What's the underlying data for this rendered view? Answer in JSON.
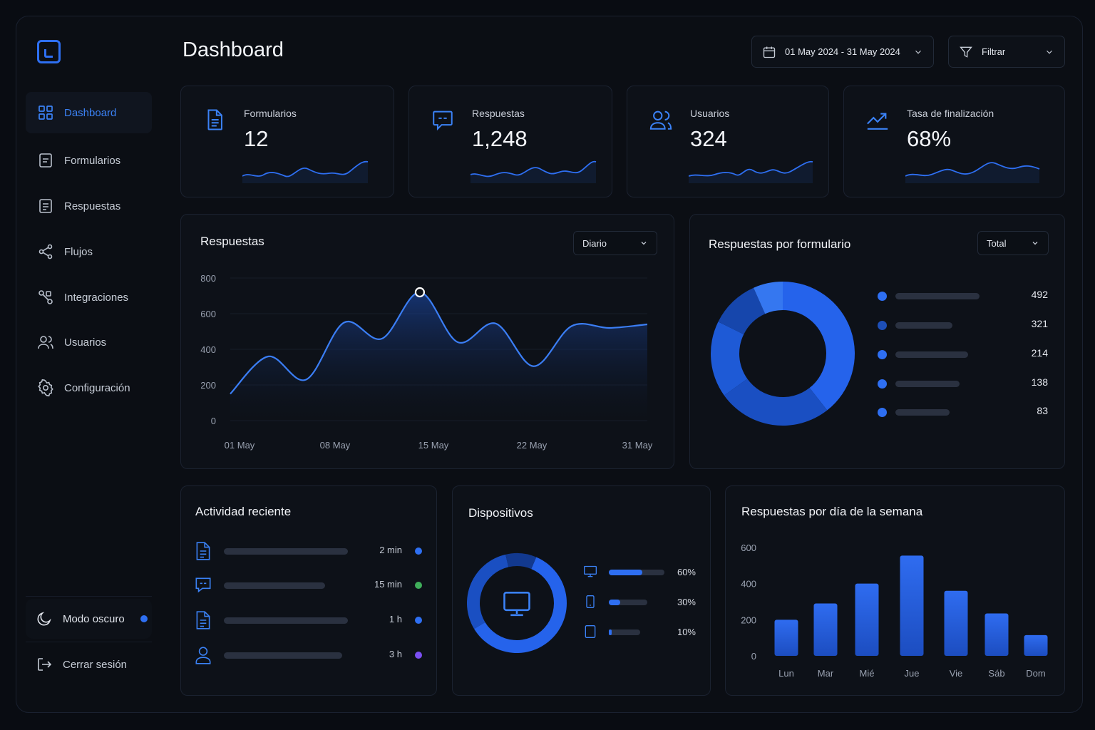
{
  "header": {
    "title": "Dashboard",
    "date_range": "01 May 2024 - 31 May 2024",
    "filter_label": "Filtrar"
  },
  "sidebar": {
    "items": [
      {
        "label": "Dashboard",
        "icon": "grid-icon",
        "active": true
      },
      {
        "label": "Formularios",
        "icon": "form-icon"
      },
      {
        "label": "Respuestas",
        "icon": "responses-icon"
      },
      {
        "label": "Flujos",
        "icon": "flow-icon"
      },
      {
        "label": "Integraciones",
        "icon": "integrations-icon"
      },
      {
        "label": "Usuarios",
        "icon": "users-icon"
      },
      {
        "label": "Configuración",
        "icon": "settings-icon"
      }
    ],
    "theme_toggle": "Modo oscuro",
    "logout": "Cerrar sesión"
  },
  "stats": [
    {
      "label": "Formularios",
      "value": "12",
      "icon": "document-icon"
    },
    {
      "label": "Respuestas",
      "value": "1,248",
      "icon": "chat-icon"
    },
    {
      "label": "Usuarios",
      "value": "324",
      "icon": "users-icon"
    },
    {
      "label": "Tasa de finalización",
      "value": "68%",
      "icon": "trend-up-icon"
    }
  ],
  "responses_chart": {
    "title": "Respuestas",
    "period": "Diario"
  },
  "responses_by_form": {
    "title": "Respuestas por formulario",
    "period": "Total"
  },
  "activity": {
    "title": "Actividad reciente",
    "items": [
      {
        "icon": "document-icon",
        "time": "2 min",
        "status_color": "#2e6ff2"
      },
      {
        "icon": "chat-icon",
        "time": "15 min",
        "status_color": "#3fae5a"
      },
      {
        "icon": "document-icon",
        "time": "1 h",
        "status_color": "#2e6ff2"
      },
      {
        "icon": "user-icon",
        "time": "3 h",
        "status_color": "#7b4ff2"
      }
    ]
  },
  "devices": {
    "title": "Dispositivos",
    "center_icon": "monitor-icon",
    "items": [
      {
        "icon": "desktop-icon",
        "label": "60%",
        "fraction": 0.6
      },
      {
        "icon": "mobile-icon",
        "label": "30%",
        "fraction": 0.3
      },
      {
        "icon": "tablet-icon",
        "label": "10%",
        "fraction": 0.1
      }
    ]
  },
  "weekday_chart": {
    "title": "Respuestas por día de la semana"
  },
  "colors": {
    "accent": "#2e6ff2",
    "background": "#0b0e14",
    "card": "#0d1118"
  },
  "chart_data": [
    {
      "type": "area",
      "x": [
        "01 May",
        "04 May",
        "08 May",
        "11 May",
        "13 May",
        "15 May",
        "17 May",
        "19 May",
        "22 May",
        "25 May",
        "28 May",
        "31 May"
      ],
      "values": [
        150,
        360,
        230,
        550,
        460,
        720,
        440,
        545,
        305,
        530,
        520,
        540
      ],
      "x_ticks": [
        "01 May",
        "08 May",
        "15 May",
        "22 May",
        "31 May"
      ],
      "y_ticks": [
        "0",
        "200",
        "400",
        "600",
        "800"
      ],
      "ylim": [
        0,
        800
      ],
      "highlight_index": 5
    },
    {
      "type": "pie",
      "values": [
        492,
        321,
        214,
        138,
        83
      ],
      "categories": [
        "",
        "",
        "",
        "",
        ""
      ],
      "labels": [
        "492",
        "321",
        "214",
        "138",
        "83"
      ]
    },
    {
      "type": "pie",
      "categories": [
        "",
        "",
        ""
      ],
      "values": [
        60,
        30,
        10
      ]
    },
    {
      "type": "bar",
      "categories": [
        "Lun",
        "Mar",
        "Mié",
        "Jue",
        "Vie",
        "Sáb",
        "Dom"
      ],
      "values": [
        200,
        290,
        400,
        555,
        360,
        235,
        115
      ],
      "y_ticks": [
        "0",
        "200",
        "400",
        "600"
      ],
      "ylim": [
        0,
        600
      ]
    }
  ]
}
